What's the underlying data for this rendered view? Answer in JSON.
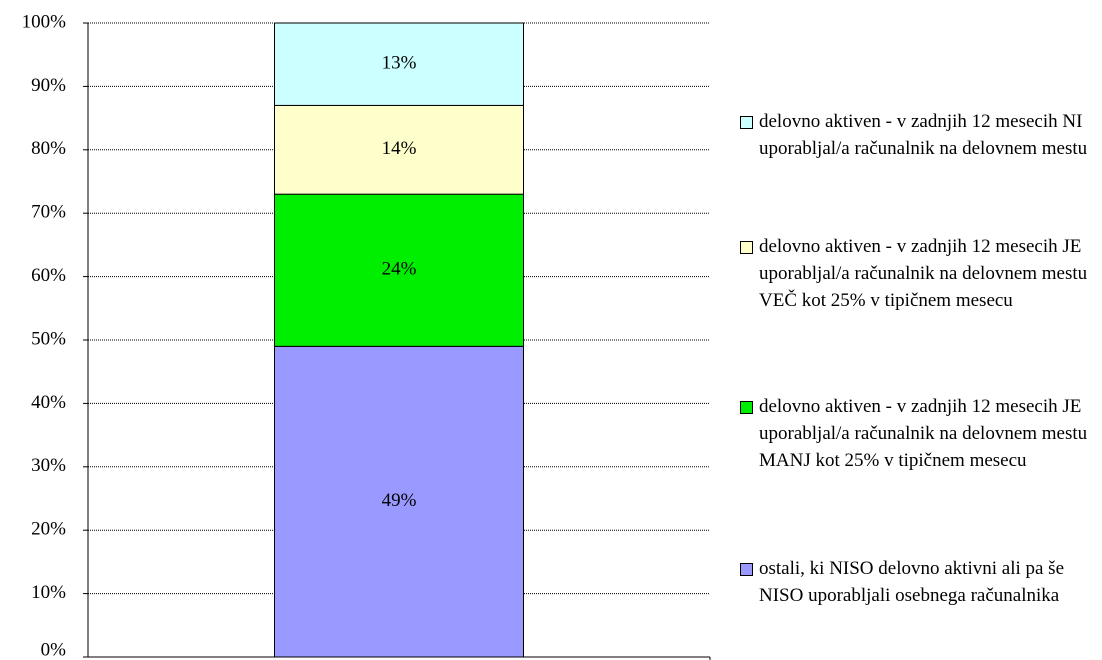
{
  "chart_data": {
    "type": "stacked_bar",
    "categories": [
      null
    ],
    "series": [
      {
        "name": "ostali, ki NISO delovno aktivni ali pa še NISO uporabljali osebnega računalnika",
        "color": "#9999ff",
        "values": [
          49
        ],
        "value_labels": [
          "49%"
        ]
      },
      {
        "name": "delovno aktiven - v zadnjih 12 mesecih JE uporabljal/a računalnik na delovnem mestu MANJ kot 25% v tipičnem mesecu",
        "color": "#00ee00",
        "values": [
          24
        ],
        "value_labels": [
          "24%"
        ]
      },
      {
        "name": "delovno aktiven - v zadnjih 12 mesecih JE uporabljal/a računalnik na delovnem mestu VEČ kot 25% v tipičnem mesecu",
        "color": "#ffffcc",
        "values": [
          14
        ],
        "value_labels": [
          "14%"
        ]
      },
      {
        "name": "delovno aktiven - v zadnjih 12 mesecih NI uporabljal/a računalnik na delovnem mestu",
        "color": "#ccffff",
        "values": [
          13
        ],
        "value_labels": [
          "13%"
        ]
      }
    ],
    "ylim": [
      0,
      100
    ],
    "yticks": [
      {
        "value": 0,
        "label": "0%"
      },
      {
        "value": 10,
        "label": "10%"
      },
      {
        "value": 20,
        "label": "20%"
      },
      {
        "value": 30,
        "label": "30%"
      },
      {
        "value": 40,
        "label": "40%"
      },
      {
        "value": 50,
        "label": "50%"
      },
      {
        "value": 60,
        "label": "60%"
      },
      {
        "value": 70,
        "label": "70%"
      },
      {
        "value": 80,
        "label": "80%"
      },
      {
        "value": 90,
        "label": "90%"
      },
      {
        "value": 100,
        "label": "100%"
      }
    ],
    "grid": true,
    "legend": "right"
  }
}
